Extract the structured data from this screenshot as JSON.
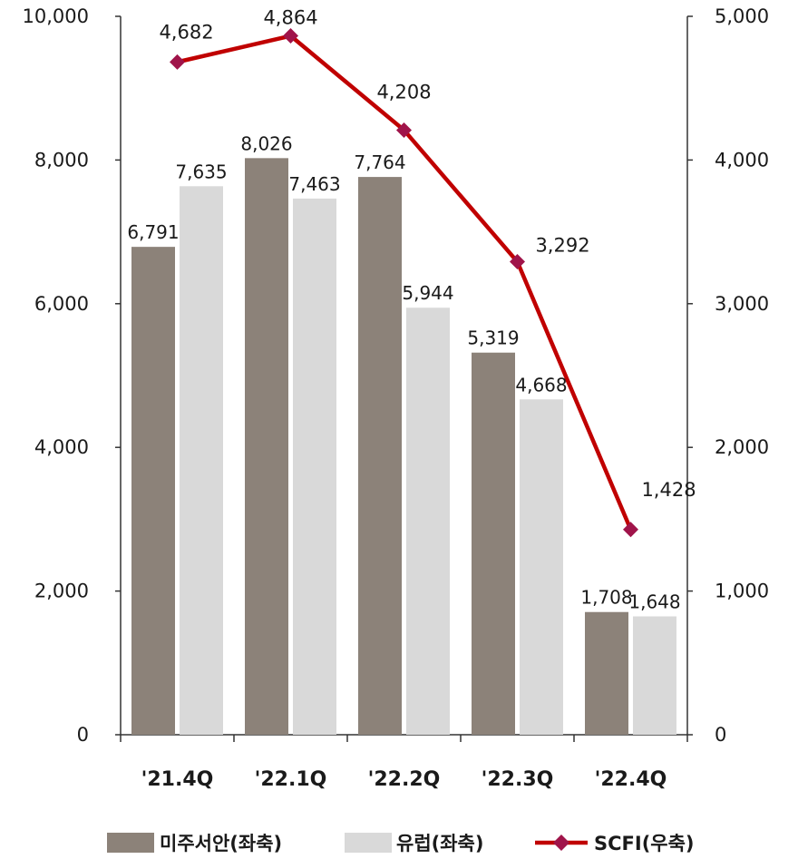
{
  "chart_data": {
    "type": "bar",
    "categories": [
      "'21.4Q",
      "'22.1Q",
      "'22.2Q",
      "'22.3Q",
      "'22.4Q"
    ],
    "series": [
      {
        "name": "미주서안(좌축)",
        "type": "bar",
        "axis": "left",
        "color": "#8c8279",
        "values": [
          6791,
          8026,
          7764,
          5319,
          1708
        ]
      },
      {
        "name": "유럽(좌축)",
        "type": "bar",
        "axis": "left",
        "color": "#d9d9d9",
        "values": [
          7635,
          7463,
          5944,
          4668,
          1648
        ]
      },
      {
        "name": "SCFI(우축)",
        "type": "line",
        "axis": "right",
        "color": "#c00000",
        "marker_color": "#a0144a",
        "values": [
          4682,
          4864,
          4208,
          3292,
          1428
        ]
      }
    ],
    "y_left": {
      "min": 0,
      "max": 10000,
      "ticks": [
        "0",
        "2,000",
        "4,000",
        "6,000",
        "8,000",
        "10,000"
      ]
    },
    "y_right": {
      "min": 0,
      "max": 5000,
      "ticks": [
        "0",
        "1,000",
        "2,000",
        "3,000",
        "4,000",
        "5,000"
      ]
    },
    "labels": {
      "bar1": [
        "6,791",
        "8,026",
        "7,764",
        "5,319",
        "1,708"
      ],
      "bar2": [
        "7,635",
        "7,463",
        "5,944",
        "4,668",
        "1,648"
      ],
      "line": [
        "4,682",
        "4,864",
        "4,208",
        "3,292",
        "1,428"
      ]
    },
    "legend_position": "bottom",
    "grid": false
  }
}
